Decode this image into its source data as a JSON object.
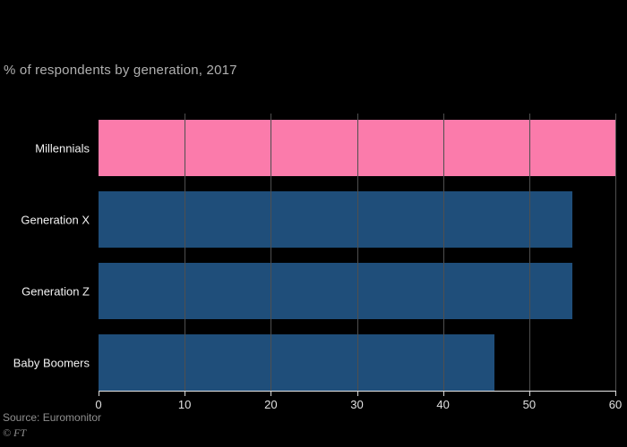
{
  "chart": {
    "subtitle": "% of respondents by generation, 2017",
    "source": "Source: Euromonitor",
    "credit": "© FT"
  },
  "chart_data": {
    "type": "bar",
    "orientation": "horizontal",
    "subtitle": "% of respondents by generation, 2017",
    "title": "",
    "xlabel": "",
    "ylabel": "",
    "categories": [
      "Millennials",
      "Generation X",
      "Generation Z",
      "Baby Boomers"
    ],
    "values": [
      60,
      55,
      55,
      46
    ],
    "bar_colors": [
      "#fb7bab",
      "#1f4e7a",
      "#1f4e7a",
      "#1f4e7a"
    ],
    "xlim": [
      0,
      60
    ],
    "xticks": [
      0,
      10,
      20,
      30,
      40,
      50,
      60
    ],
    "grid": true,
    "legend": "none",
    "background_color": "#000000",
    "text_color": "#f2f2f2"
  }
}
